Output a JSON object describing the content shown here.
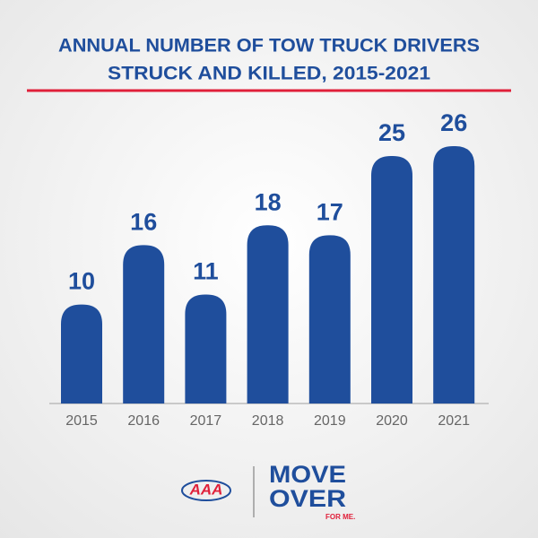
{
  "chart_data": {
    "type": "bar",
    "title": [
      "ANNUAL NUMBER OF TOW TRUCK DRIVERS",
      "STRUCK AND KILLED, 2015-2021"
    ],
    "categories": [
      "2015",
      "2016",
      "2017",
      "2018",
      "2019",
      "2020",
      "2021"
    ],
    "values": [
      10,
      16,
      11,
      18,
      17,
      25,
      26
    ],
    "color": "#1f4e9c"
  },
  "footer": {
    "logo": "AAA",
    "campaign": [
      "MOVE",
      "OVER",
      "FOR ME."
    ]
  }
}
